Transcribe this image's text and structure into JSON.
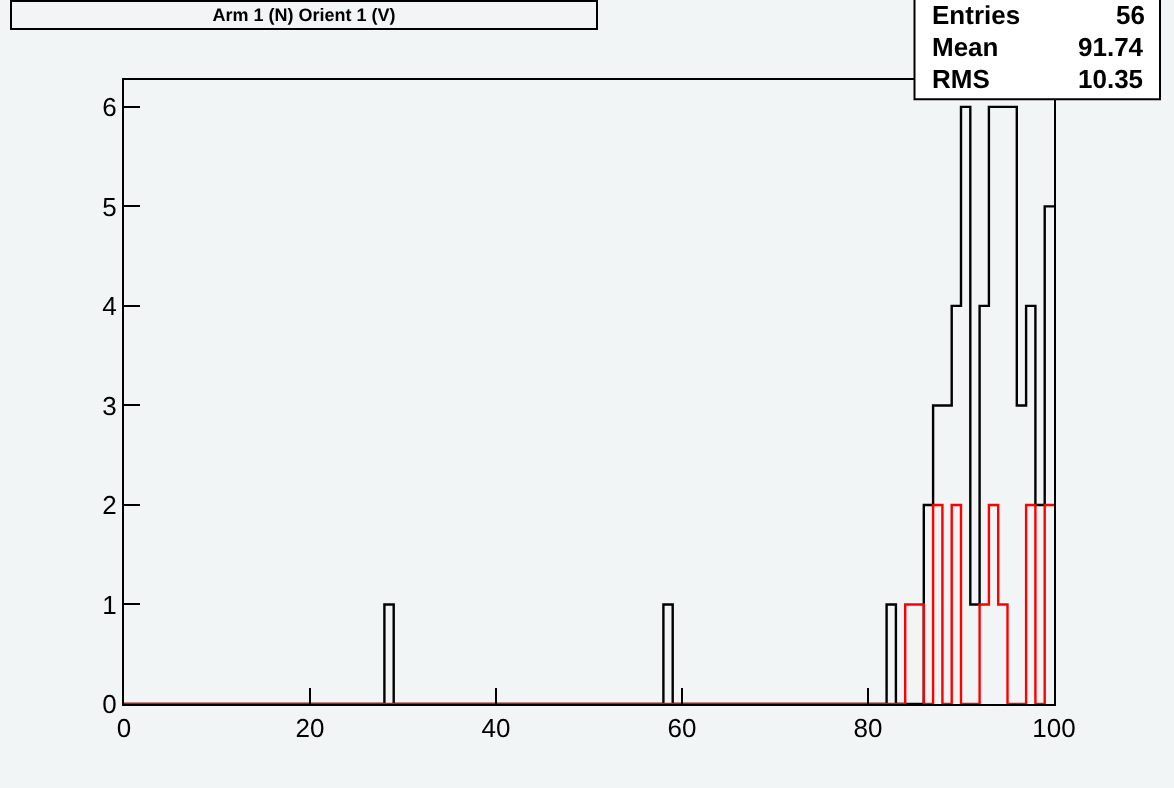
{
  "chart_data": {
    "type": "histogram",
    "title": "Arm 1 (N) Orient 1 (V)",
    "bins": [
      0,
      1,
      2,
      3,
      4,
      5,
      6,
      7,
      8,
      9,
      10,
      11,
      12,
      13,
      14,
      15,
      16,
      17,
      18,
      19,
      20,
      21,
      22,
      23,
      24,
      25,
      26,
      27,
      28,
      29,
      30,
      31,
      32,
      33,
      34,
      35,
      36,
      37,
      38,
      39,
      40,
      41,
      42,
      43,
      44,
      45,
      46,
      47,
      48,
      49,
      50,
      51,
      52,
      53,
      54,
      55,
      56,
      57,
      58,
      59,
      60,
      61,
      62,
      63,
      64,
      65,
      66,
      67,
      68,
      69,
      70,
      71,
      72,
      73,
      74,
      75,
      76,
      77,
      78,
      79,
      80,
      81,
      82,
      83,
      84,
      85,
      86,
      87,
      88,
      89,
      90,
      91,
      92,
      93,
      94,
      95,
      96,
      97,
      98,
      99,
      100
    ],
    "series": [
      {
        "color": "#000000",
        "values": [
          0,
          0,
          0,
          0,
          0,
          0,
          0,
          0,
          0,
          0,
          0,
          0,
          0,
          0,
          0,
          0,
          0,
          0,
          0,
          0,
          0,
          0,
          0,
          0,
          0,
          0,
          0,
          0,
          1,
          0,
          0,
          0,
          0,
          0,
          0,
          0,
          0,
          0,
          0,
          0,
          0,
          0,
          0,
          0,
          0,
          0,
          0,
          0,
          0,
          0,
          0,
          0,
          0,
          0,
          0,
          0,
          0,
          0,
          1,
          0,
          0,
          0,
          0,
          0,
          0,
          0,
          0,
          0,
          0,
          0,
          0,
          0,
          0,
          0,
          0,
          0,
          0,
          0,
          0,
          0,
          0,
          0,
          1,
          0,
          0,
          0,
          2,
          3,
          3,
          4,
          6,
          1,
          4,
          6,
          6,
          6,
          3,
          4,
          2,
          5
        ]
      },
      {
        "color": "#ff0000",
        "values": [
          0,
          0,
          0,
          0,
          0,
          0,
          0,
          0,
          0,
          0,
          0,
          0,
          0,
          0,
          0,
          0,
          0,
          0,
          0,
          0,
          0,
          0,
          0,
          0,
          0,
          0,
          0,
          0,
          0,
          0,
          0,
          0,
          0,
          0,
          0,
          0,
          0,
          0,
          0,
          0,
          0,
          0,
          0,
          0,
          0,
          0,
          0,
          0,
          0,
          0,
          0,
          0,
          0,
          0,
          0,
          0,
          0,
          0,
          0,
          0,
          0,
          0,
          0,
          0,
          0,
          0,
          0,
          0,
          0,
          0,
          0,
          0,
          0,
          0,
          0,
          0,
          0,
          0,
          0,
          0,
          0,
          0,
          0,
          0,
          1,
          1,
          0,
          2,
          0,
          2,
          0,
          0,
          1,
          2,
          1,
          0,
          0,
          2,
          0,
          2
        ]
      }
    ],
    "xlim": [
      0,
      100
    ],
    "xticks": [
      0,
      20,
      40,
      60,
      80,
      100
    ],
    "ylim": [
      0,
      6.27
    ],
    "yticks": [
      0,
      1,
      2,
      3,
      4,
      5,
      6
    ],
    "grid": false,
    "annotations": [
      "Entries 56",
      "Mean 91.74",
      "RMS 10.35"
    ]
  }
}
